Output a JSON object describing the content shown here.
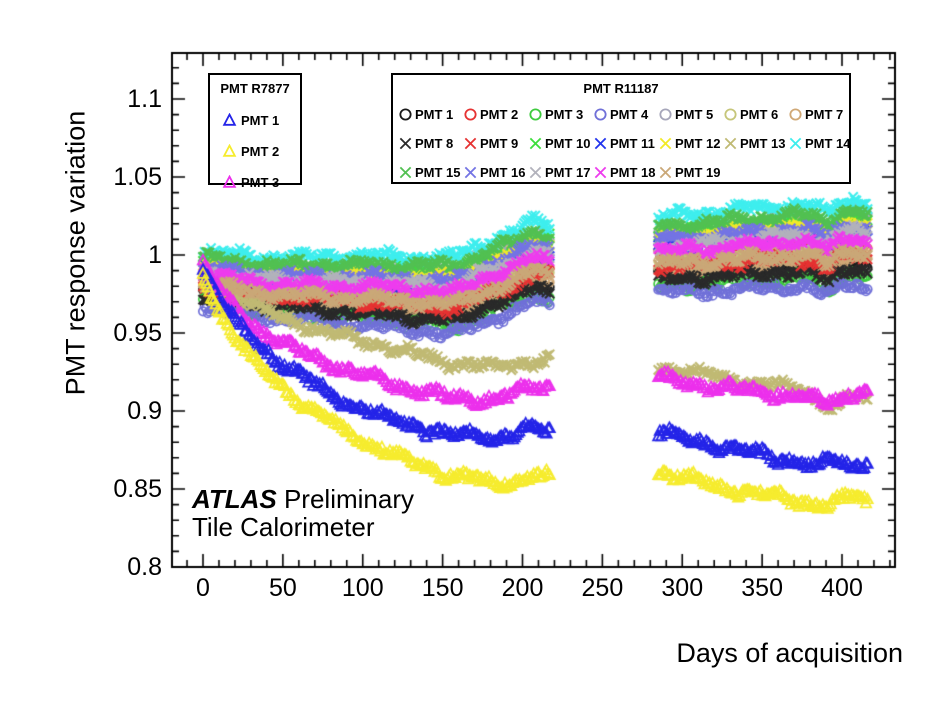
{
  "watermark": {
    "atlas": "ATLAS",
    "preliminary": " Preliminary",
    "line2": "Tile Calorimeter"
  },
  "legends": [
    {
      "title": "PMT R7877",
      "entries": [
        {
          "label": "PMT 1",
          "marker": "triangle",
          "color": "#2424e8"
        },
        {
          "label": "PMT 2",
          "marker": "triangle",
          "color": "#f6ec2e"
        },
        {
          "label": "PMT 3",
          "marker": "triangle",
          "color": "#ec30ec"
        }
      ]
    },
    {
      "title": "PMT R11187",
      "entries": [
        {
          "label": "PMT 1",
          "marker": "circle",
          "color": "#1a1a1a"
        },
        {
          "label": "PMT 2",
          "marker": "circle",
          "color": "#e63232"
        },
        {
          "label": "PMT 3",
          "marker": "circle",
          "color": "#3ecb3e"
        },
        {
          "label": "PMT 4",
          "marker": "circle",
          "color": "#7070d8"
        },
        {
          "label": "PMT 5",
          "marker": "circle",
          "color": "#a6a6ba"
        },
        {
          "label": "PMT 6",
          "marker": "circle",
          "color": "#c6c67a"
        },
        {
          "label": "PMT 7",
          "marker": "circle",
          "color": "#d0a876"
        },
        {
          "label": "PMT 8",
          "marker": "cross",
          "color": "#2a2a2a"
        },
        {
          "label": "PMT 9",
          "marker": "cross",
          "color": "#e63232"
        },
        {
          "label": "PMT 10",
          "marker": "cross",
          "color": "#3ede3e"
        },
        {
          "label": "PMT 11",
          "marker": "cross",
          "color": "#2234ee"
        },
        {
          "label": "PMT 12",
          "marker": "cross",
          "color": "#f2ea28"
        },
        {
          "label": "PMT 13",
          "marker": "cross",
          "color": "#c0ba74"
        },
        {
          "label": "PMT 14",
          "marker": "cross",
          "color": "#3eeeee"
        },
        {
          "label": "PMT 15",
          "marker": "cross",
          "color": "#52c052"
        },
        {
          "label": "PMT 16",
          "marker": "cross",
          "color": "#7474e4"
        },
        {
          "label": "PMT 17",
          "marker": "cross",
          "color": "#b2b2bc"
        },
        {
          "label": "PMT 18",
          "marker": "cross",
          "color": "#ee3cee"
        },
        {
          "label": "PMT 19",
          "marker": "cross",
          "color": "#caa878"
        }
      ]
    }
  ],
  "chart_data": {
    "type": "scatter",
    "title": "",
    "xlabel": "Days of acquisition",
    "ylabel": "PMT response variation",
    "xlim": [
      -19.4,
      433.2
    ],
    "ylim": [
      0.8,
      1.1295
    ],
    "x_ticks": [
      {
        "value": 0,
        "label": "0"
      },
      {
        "value": 50,
        "label": "50"
      },
      {
        "value": 100,
        "label": "100"
      },
      {
        "value": 150,
        "label": "150"
      },
      {
        "value": 200,
        "label": "200"
      },
      {
        "value": 250,
        "label": "250"
      },
      {
        "value": 300,
        "label": "300"
      },
      {
        "value": 350,
        "label": "350"
      },
      {
        "value": 400,
        "label": "400"
      }
    ],
    "y_ticks": [
      {
        "value": 0.8,
        "label": "0.8"
      },
      {
        "value": 0.85,
        "label": "0.85"
      },
      {
        "value": 0.9,
        "label": "0.9"
      },
      {
        "value": 0.95,
        "label": "0.95"
      },
      {
        "value": 1.0,
        "label": "1"
      },
      {
        "value": 1.05,
        "label": "1.05"
      },
      {
        "value": 1.1,
        "label": "1.1"
      }
    ],
    "x_minor_step": 10,
    "y_minor_step": 0.01,
    "segments": [
      [
        0,
        217
      ],
      [
        285,
        416
      ]
    ],
    "band_base": [
      [
        0,
        0.968
      ],
      [
        10,
        0.966
      ],
      [
        25,
        0.963
      ],
      [
        40,
        0.961
      ],
      [
        60,
        0.959
      ],
      [
        80,
        0.957
      ],
      [
        100,
        0.955
      ],
      [
        120,
        0.953
      ],
      [
        140,
        0.951
      ],
      [
        152,
        0.949
      ],
      [
        160,
        0.95
      ],
      [
        170,
        0.955
      ],
      [
        180,
        0.959
      ],
      [
        190,
        0.962
      ],
      [
        200,
        0.966
      ],
      [
        207,
        0.97
      ],
      [
        217,
        0.968
      ],
      [
        285,
        0.975
      ],
      [
        300,
        0.976
      ],
      [
        320,
        0.977
      ],
      [
        340,
        0.978
      ],
      [
        355,
        0.979
      ],
      [
        370,
        0.98
      ],
      [
        383,
        0.978
      ],
      [
        391,
        0.973
      ],
      [
        398,
        0.98
      ],
      [
        407,
        0.982
      ],
      [
        416,
        0.979
      ]
    ],
    "band_spread": [
      [
        0,
        0.7
      ],
      [
        60,
        0.8
      ],
      [
        100,
        0.9
      ],
      [
        150,
        1.0
      ],
      [
        217,
        1.05
      ],
      [
        285,
        1.0
      ],
      [
        416,
        1.1
      ]
    ],
    "series": [
      {
        "group": "PMT R11187",
        "label": "PMT 1",
        "marker": "circle",
        "color": "#1a1a1a",
        "band_offset": 0.012
      },
      {
        "group": "PMT R11187",
        "label": "PMT 2",
        "marker": "circle",
        "color": "#e63232",
        "band_offset": 0.024
      },
      {
        "group": "PMT R11187",
        "label": "PMT 3",
        "marker": "circle",
        "color": "#3ecb3e",
        "band_offset": 0.005
      },
      {
        "group": "PMT R11187",
        "label": "PMT 4",
        "marker": "circle",
        "color": "#7070d8",
        "band_offset": 0.0
      },
      {
        "group": "PMT R11187",
        "label": "PMT 5",
        "marker": "circle",
        "color": "#a6a6ba",
        "band_offset": 0.041
      },
      {
        "group": "PMT R11187",
        "label": "PMT 6",
        "marker": "circle",
        "color": "#c6c67a",
        "band_offset": 0.021
      },
      {
        "group": "PMT R11187",
        "label": "PMT 7",
        "marker": "circle",
        "color": "#d0a876",
        "band_offset": 0.015
      },
      {
        "group": "PMT R11187",
        "label": "PMT 8",
        "marker": "cross",
        "color": "#2a2a2a",
        "band_offset": 0.009
      },
      {
        "group": "PMT R11187",
        "label": "PMT 9",
        "marker": "cross",
        "color": "#e63232",
        "band_offset": 0.017
      },
      {
        "group": "PMT R11187",
        "label": "PMT 10",
        "marker": "cross",
        "color": "#3ede3e",
        "band_offset": 0.039
      },
      {
        "group": "PMT R11187",
        "label": "PMT 11",
        "marker": "cross",
        "color": "#2234ee",
        "band_offset": 0.032
      },
      {
        "group": "PMT R11187",
        "label": "PMT 12",
        "marker": "cross",
        "color": "#f2ea28",
        "band_offset": 0.036
      },
      {
        "group": "PMT R11187",
        "label": "PMT 13",
        "marker": "cross",
        "color": "#c0ba74",
        "points": [
          [
            0,
            0.988
          ],
          [
            20,
            0.974
          ],
          [
            40,
            0.964
          ],
          [
            60,
            0.956
          ],
          [
            80,
            0.95
          ],
          [
            100,
            0.945
          ],
          [
            120,
            0.94
          ],
          [
            140,
            0.935
          ],
          [
            155,
            0.931
          ],
          [
            170,
            0.929
          ],
          [
            185,
            0.928
          ],
          [
            200,
            0.931
          ],
          [
            217,
            0.933
          ],
          [
            285,
            0.928
          ],
          [
            305,
            0.925
          ],
          [
            325,
            0.921
          ],
          [
            345,
            0.918
          ],
          [
            365,
            0.915
          ],
          [
            378,
            0.912
          ],
          [
            388,
            0.906
          ],
          [
            395,
            0.903
          ],
          [
            403,
            0.907
          ],
          [
            410,
            0.909
          ],
          [
            416,
            0.907
          ]
        ]
      },
      {
        "group": "PMT R11187",
        "label": "PMT 14",
        "marker": "cross",
        "color": "#3eeeee",
        "band_offset": 0.049
      },
      {
        "group": "PMT R11187",
        "label": "PMT 15",
        "marker": "cross",
        "color": "#52c052",
        "band_offset": 0.043
      },
      {
        "group": "PMT R11187",
        "label": "PMT 16",
        "marker": "cross",
        "color": "#7474e4",
        "band_offset": 0.034
      },
      {
        "group": "PMT R11187",
        "label": "PMT 17",
        "marker": "cross",
        "color": "#b2b2bc",
        "band_offset": 0.03
      },
      {
        "group": "PMT R11187",
        "label": "PMT 18",
        "marker": "cross",
        "color": "#ee3cee",
        "band_offset": 0.027
      },
      {
        "group": "PMT R11187",
        "label": "PMT 19",
        "marker": "cross",
        "color": "#caa878",
        "band_offset": 0.019
      },
      {
        "group": "PMT R7877",
        "label": "PMT 3",
        "marker": "triangle",
        "color": "#ec30ec",
        "points": [
          [
            0,
            0.994
          ],
          [
            10,
            0.978
          ],
          [
            20,
            0.965
          ],
          [
            30,
            0.956
          ],
          [
            45,
            0.946
          ],
          [
            60,
            0.938
          ],
          [
            80,
            0.93
          ],
          [
            100,
            0.923
          ],
          [
            120,
            0.917
          ],
          [
            140,
            0.912
          ],
          [
            155,
            0.908
          ],
          [
            170,
            0.908
          ],
          [
            185,
            0.908
          ],
          [
            195,
            0.911
          ],
          [
            205,
            0.915
          ],
          [
            217,
            0.916
          ],
          [
            285,
            0.921
          ],
          [
            305,
            0.918
          ],
          [
            325,
            0.915
          ],
          [
            345,
            0.913
          ],
          [
            365,
            0.91
          ],
          [
            380,
            0.908
          ],
          [
            390,
            0.906
          ],
          [
            400,
            0.909
          ],
          [
            408,
            0.912
          ],
          [
            416,
            0.913
          ]
        ]
      },
      {
        "group": "PMT R7877",
        "label": "PMT 1",
        "marker": "triangle",
        "color": "#2424e8",
        "points": [
          [
            0,
            0.991
          ],
          [
            10,
            0.972
          ],
          [
            20,
            0.957
          ],
          [
            30,
            0.946
          ],
          [
            45,
            0.934
          ],
          [
            60,
            0.923
          ],
          [
            80,
            0.911
          ],
          [
            100,
            0.901
          ],
          [
            120,
            0.894
          ],
          [
            140,
            0.888
          ],
          [
            155,
            0.884
          ],
          [
            170,
            0.885
          ],
          [
            185,
            0.883
          ],
          [
            195,
            0.885
          ],
          [
            205,
            0.889
          ],
          [
            217,
            0.888
          ],
          [
            285,
            0.887
          ],
          [
            305,
            0.882
          ],
          [
            325,
            0.877
          ],
          [
            345,
            0.873
          ],
          [
            365,
            0.869
          ],
          [
            378,
            0.866
          ],
          [
            386,
            0.864
          ],
          [
            392,
            0.871
          ],
          [
            398,
            0.867
          ],
          [
            406,
            0.865
          ],
          [
            416,
            0.869
          ]
        ]
      },
      {
        "group": "PMT R7877",
        "label": "PMT 2",
        "marker": "triangle",
        "color": "#f6ec2e",
        "points": [
          [
            0,
            0.987
          ],
          [
            10,
            0.965
          ],
          [
            20,
            0.948
          ],
          [
            30,
            0.935
          ],
          [
            45,
            0.92
          ],
          [
            60,
            0.907
          ],
          [
            80,
            0.893
          ],
          [
            100,
            0.881
          ],
          [
            120,
            0.872
          ],
          [
            140,
            0.864
          ],
          [
            155,
            0.859
          ],
          [
            170,
            0.856
          ],
          [
            185,
            0.854
          ],
          [
            195,
            0.855
          ],
          [
            205,
            0.859
          ],
          [
            217,
            0.857
          ],
          [
            285,
            0.861
          ],
          [
            305,
            0.856
          ],
          [
            325,
            0.851
          ],
          [
            345,
            0.847
          ],
          [
            365,
            0.844
          ],
          [
            380,
            0.841
          ],
          [
            390,
            0.839
          ],
          [
            400,
            0.843
          ],
          [
            408,
            0.845
          ],
          [
            416,
            0.842
          ]
        ]
      }
    ]
  }
}
